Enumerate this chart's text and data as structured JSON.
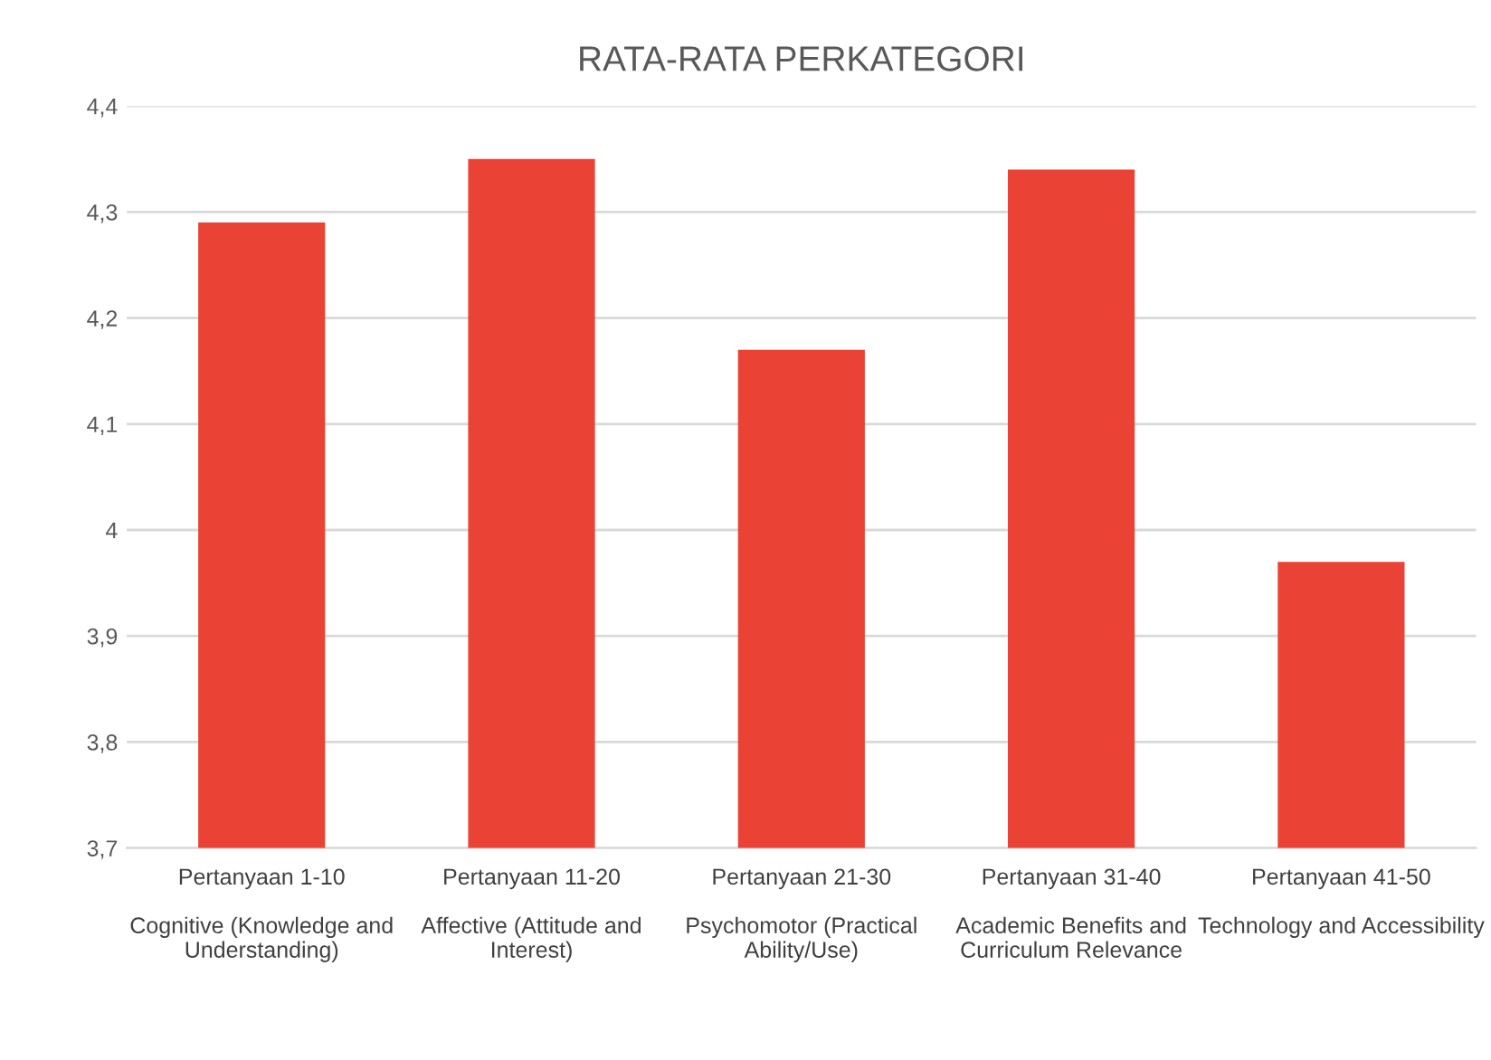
{
  "chart_data": {
    "type": "bar",
    "title": "RATA-RATA PERKATEGORI",
    "categories": [
      "Pertanyaan 1-10\n\nCognitive (Knowledge and\nUnderstanding)",
      "Pertanyaan 11-20\n\nAffective (Attitude and\nInterest)",
      "Pertanyaan 21-30\n\nPsychomotor (Practical\nAbility/Use)",
      "Pertanyaan 31-40\n\nAcademic Benefits and\nCurriculum Relevance",
      "Pertanyaan 41-50\n\nTechnology and Accessibility"
    ],
    "values": [
      4.29,
      4.35,
      4.17,
      4.34,
      3.97
    ],
    "color": "#ea4335",
    "ylim": [
      3.7,
      4.4
    ],
    "yticks": [
      {
        "value": 3.7,
        "label": "3,7"
      },
      {
        "value": 3.8,
        "label": "3,8"
      },
      {
        "value": 3.9,
        "label": "3,9"
      },
      {
        "value": 4,
        "label": "4"
      },
      {
        "value": 4.1,
        "label": "4,1"
      },
      {
        "value": 4.2,
        "label": "4,2"
      },
      {
        "value": 4.3,
        "label": "4,3"
      },
      {
        "value": 4.4,
        "label": "4,4"
      }
    ],
    "grid": "y"
  }
}
